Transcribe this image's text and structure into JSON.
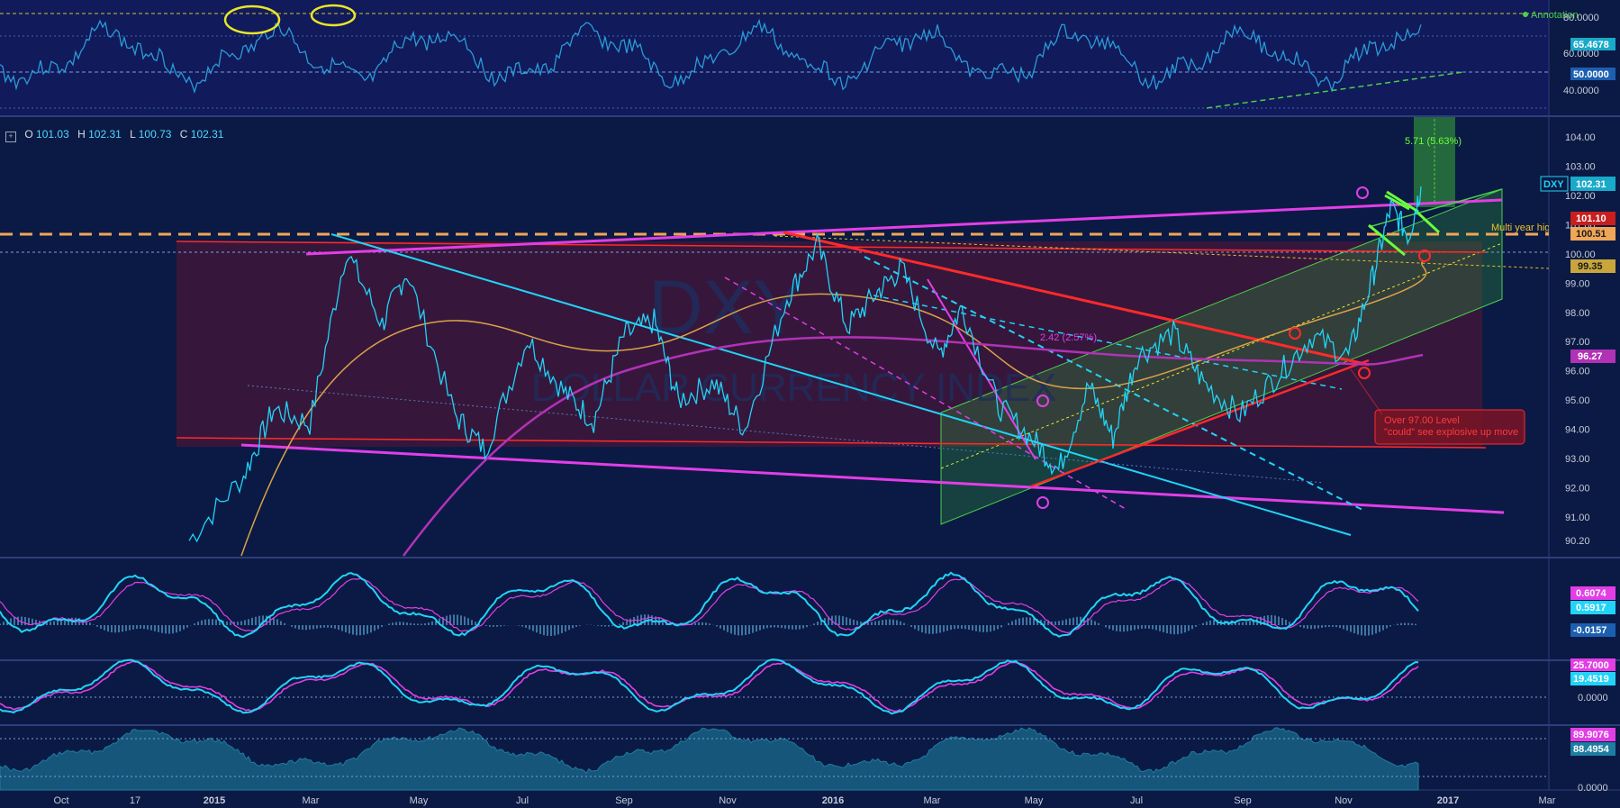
{
  "ohlc": {
    "o_label": "O",
    "o": "101.03",
    "h_label": "H",
    "h": "102.31",
    "l_label": "L",
    "l": "100.73",
    "c_label": "C",
    "c": "102.31"
  },
  "colors": {
    "background": "#0b1a44",
    "price": "#22d3f7",
    "magenta": "#e23ee6",
    "red": "#ff2a2a",
    "orange": "#ffb05a",
    "green": "#4bd04b",
    "yellow": "#e7e52a",
    "rsi": "#2a9bd8"
  },
  "chart_data": [
    {
      "type": "line",
      "name": "RSI panel",
      "y_ticks": [
        "80.0000",
        "60.0000",
        "40.0000"
      ],
      "price_labels": [
        {
          "text": "65.4678",
          "bg": "#19a9c9"
        },
        {
          "text": "50.0000",
          "bg": "#1c5fb0"
        }
      ],
      "legend_text": "Annotation"
    },
    {
      "type": "line",
      "name": "DXY main panel",
      "symbol": "DXY",
      "y_ticks": [
        "104.00",
        "103.00",
        "102.00",
        "101.00",
        "100.00",
        "99.00",
        "98.00",
        "97.00",
        "96.00",
        "95.00",
        "94.00",
        "93.00",
        "92.00",
        "91.00",
        "90.20"
      ],
      "x_ticks": [
        "Oct",
        "17",
        "2015",
        "Mar",
        "May",
        "Jul",
        "Sep",
        "Nov",
        "2016",
        "Mar",
        "May",
        "Jul",
        "Sep",
        "Nov",
        "2017",
        "Mar"
      ],
      "price_labels": [
        {
          "text": "102.31",
          "bg": "#19a9c9"
        },
        {
          "text": "101.10",
          "bg": "#c81e1e"
        },
        {
          "text": "100.51",
          "bg": "#f0a657"
        },
        {
          "text": "99.35",
          "bg": "#c8a63c"
        },
        {
          "text": "96.27",
          "bg": "#b132b6"
        }
      ],
      "symbol_tag": "DXY",
      "watermark_symbol": "DXY",
      "watermark_name": "DOLLAR CURRENCY INDEX",
      "annotations": {
        "measure": "5.71 (5.63%)",
        "multi_year": "Multi year highs",
        "pct": "2.42 (2.57%)",
        "callout_1": "Over 97.00 Level",
        "callout_2": "\"could\" see explosive up move",
        "circle_num": "3"
      },
      "key_levels": {
        "last": 102.31,
        "red_line": 101.1,
        "resistance": 100.51,
        "yellow": 99.35,
        "ma": 96.27
      },
      "price_path": [
        {
          "t": 2014.96,
          "v": 90.2
        },
        {
          "t": 2015.05,
          "v": 92.4
        },
        {
          "t": 2015.1,
          "v": 94.7
        },
        {
          "t": 2015.16,
          "v": 94.2
        },
        {
          "t": 2015.22,
          "v": 100.1
        },
        {
          "t": 2015.28,
          "v": 97.6
        },
        {
          "t": 2015.32,
          "v": 99.4
        },
        {
          "t": 2015.4,
          "v": 94.5
        },
        {
          "t": 2015.45,
          "v": 93.3
        },
        {
          "t": 2015.52,
          "v": 97.1
        },
        {
          "t": 2015.58,
          "v": 95.3
        },
        {
          "t": 2015.63,
          "v": 94.3
        },
        {
          "t": 2015.68,
          "v": 97.2
        },
        {
          "t": 2015.73,
          "v": 97.7
        },
        {
          "t": 2015.77,
          "v": 95.0
        },
        {
          "t": 2015.83,
          "v": 95.6
        },
        {
          "t": 2015.88,
          "v": 94.0
        },
        {
          "t": 2015.95,
          "v": 98.5
        },
        {
          "t": 2016.0,
          "v": 100.3
        },
        {
          "t": 2016.05,
          "v": 97.5
        },
        {
          "t": 2016.1,
          "v": 98.7
        },
        {
          "t": 2016.14,
          "v": 99.5
        },
        {
          "t": 2016.2,
          "v": 96.5
        },
        {
          "t": 2016.24,
          "v": 98.2
        },
        {
          "t": 2016.3,
          "v": 94.8
        },
        {
          "t": 2016.36,
          "v": 93.6
        },
        {
          "t": 2016.4,
          "v": 92.6
        },
        {
          "t": 2016.45,
          "v": 95.5
        },
        {
          "t": 2016.49,
          "v": 93.7
        },
        {
          "t": 2016.53,
          "v": 96.5
        },
        {
          "t": 2016.59,
          "v": 97.3
        },
        {
          "t": 2016.64,
          "v": 95.6
        },
        {
          "t": 2016.7,
          "v": 94.5
        },
        {
          "t": 2016.76,
          "v": 95.8
        },
        {
          "t": 2016.82,
          "v": 97.2
        },
        {
          "t": 2016.88,
          "v": 96.5
        },
        {
          "t": 2016.92,
          "v": 99.2
        },
        {
          "t": 2016.95,
          "v": 101.6
        },
        {
          "t": 2016.98,
          "v": 100.6
        },
        {
          "t": 2017.0,
          "v": 102.31
        }
      ]
    },
    {
      "type": "line",
      "name": "MACD panel",
      "price_labels": [
        {
          "text": "0.6074",
          "bg": "#e23ee6"
        },
        {
          "text": "0.5917",
          "bg": "#22d3f7"
        },
        {
          "text": "-0.0157",
          "bg": "#1c5fb0"
        }
      ]
    },
    {
      "type": "line",
      "name": "Stochastic panel",
      "price_labels": [
        {
          "text": "25.7000",
          "bg": "#e23ee6"
        },
        {
          "text": "19.4519",
          "bg": "#22d3f7"
        },
        {
          "text": "0.0000",
          "bg": "none"
        }
      ]
    },
    {
      "type": "area",
      "name": "Bottom oscillator panel",
      "price_labels": [
        {
          "text": "89.9076",
          "bg": "#e23ee6"
        },
        {
          "text": "88.4954",
          "bg": "#1e7da0"
        },
        {
          "text": "0.0000",
          "bg": "none"
        }
      ]
    }
  ]
}
